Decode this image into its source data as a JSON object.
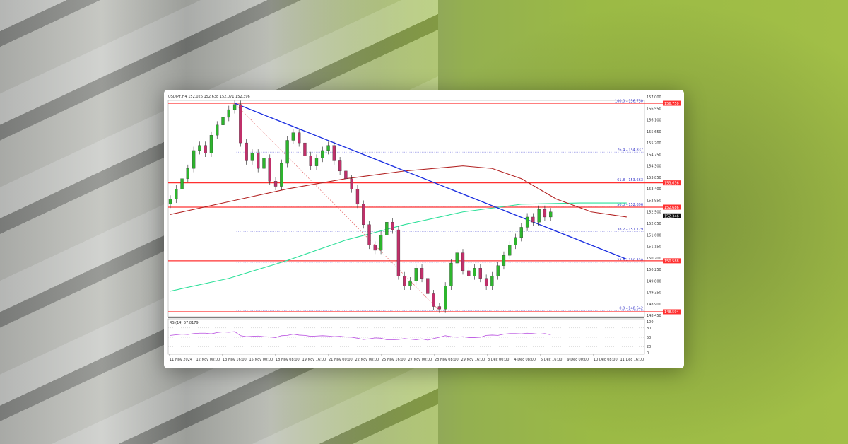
{
  "chart_data": {
    "type": "candlestick",
    "title": "USDJPY,H4 152.026 152.638 152.071 152.396",
    "ylim": [
      148.4,
      157.0
    ],
    "y_ticks": [
      "157.000",
      "156.550",
      "156.100",
      "155.650",
      "155.200",
      "154.750",
      "154.300",
      "153.850",
      "153.400",
      "152.950",
      "152.500",
      "152.050",
      "151.600",
      "151.150",
      "150.700",
      "150.250",
      "149.800",
      "149.350",
      "148.900",
      "148.450"
    ],
    "x_ticks": [
      "11 Nov 2024",
      "12 Nov 08:00",
      "13 Nov 16:00",
      "15 Nov 00:00",
      "18 Nov 08:00",
      "19 Nov 16:00",
      "21 Nov 00:00",
      "22 Nov 08:00",
      "25 Nov 16:00",
      "27 Nov 00:00",
      "28 Nov 08:00",
      "29 Nov 16:00",
      "3 Dec 00:00",
      "4 Dec 08:00",
      "5 Dec 16:00",
      "9 Dec 00:00",
      "10 Dec 08:00",
      "11 Dec 16:00"
    ],
    "closes": [
      153.0,
      153.4,
      153.8,
      154.2,
      154.9,
      155.1,
      154.8,
      155.5,
      155.9,
      156.2,
      156.5,
      156.7,
      155.2,
      154.5,
      154.8,
      154.2,
      154.6,
      153.7,
      153.5,
      154.4,
      155.3,
      155.6,
      155.2,
      154.7,
      154.3,
      154.6,
      154.9,
      155.1,
      154.5,
      154.1,
      153.8,
      153.4,
      152.8,
      152.0,
      151.2,
      151.0,
      151.6,
      152.1,
      151.8,
      150.0,
      149.6,
      149.8,
      150.3,
      149.9,
      149.3,
      148.8,
      148.7,
      149.6,
      150.5,
      150.9,
      150.2,
      150.0,
      150.3,
      149.9,
      149.6,
      150.0,
      150.4,
      150.8,
      151.2,
      151.5,
      151.9,
      152.3,
      152.1,
      152.6,
      152.3,
      152.5
    ],
    "ma_red": [
      [
        0,
        152.4
      ],
      [
        10,
        152.9
      ],
      [
        20,
        153.4
      ],
      [
        30,
        153.8
      ],
      [
        40,
        154.1
      ],
      [
        50,
        154.3
      ],
      [
        55,
        154.2
      ],
      [
        60,
        153.8
      ],
      [
        66,
        153.0
      ],
      [
        72,
        152.5
      ],
      [
        78,
        152.3
      ]
    ],
    "ma_green": [
      [
        0,
        149.4
      ],
      [
        10,
        149.9
      ],
      [
        20,
        150.6
      ],
      [
        30,
        151.4
      ],
      [
        40,
        152.0
      ],
      [
        50,
        152.5
      ],
      [
        60,
        152.8
      ],
      [
        70,
        152.85
      ],
      [
        78,
        152.85
      ]
    ],
    "trendline": {
      "from": [
        11,
        156.75
      ],
      "to": [
        78,
        150.65
      ]
    },
    "fibonacci": [
      {
        "label": "100.0 - 156.750",
        "price": 156.75
      },
      {
        "label": "76.4 - 154.837",
        "price": 154.837
      },
      {
        "label": "61.8 - 153.663",
        "price": 153.663
      },
      {
        "label": "50.0 - 152.696",
        "price": 152.696
      },
      {
        "label": "38.2 - 151.729",
        "price": 151.729
      },
      {
        "label": "23.6 - 150.530",
        "price": 150.53
      },
      {
        "label": "0.0 - 148.642",
        "price": 148.642
      }
    ],
    "horizontal_levels": [
      {
        "price": 156.75,
        "label": "156.750"
      },
      {
        "price": 153.636,
        "label": "153.636"
      },
      {
        "price": 152.686,
        "label": "152.686"
      },
      {
        "price": 150.588,
        "label": "150.588"
      },
      {
        "price": 148.594,
        "label": "148.594"
      }
    ],
    "current_price": "152.346",
    "rsi": {
      "title": "RSI(14) 57.8179",
      "ylim": [
        0,
        100
      ],
      "y_ticks": [
        "100",
        "80",
        "50",
        "20",
        "0"
      ],
      "values": [
        56,
        58,
        60,
        59,
        62,
        63,
        63,
        61,
        65,
        67,
        66,
        68,
        55,
        52,
        53,
        54,
        52,
        51,
        49,
        55,
        56,
        60,
        57,
        56,
        53,
        54,
        55,
        54,
        52,
        53,
        51,
        50,
        47,
        43,
        45,
        48,
        47,
        42,
        42,
        43,
        46,
        44,
        42,
        45,
        41,
        46,
        50,
        55,
        52,
        50,
        52,
        49,
        49,
        50,
        56,
        57,
        56,
        60,
        62,
        62,
        61,
        63,
        62,
        60,
        62,
        58
      ]
    },
    "colors": {
      "up": "#2db52d",
      "down": "#c0306a",
      "ma_red": "#b22222",
      "ma_green": "#2ee09a",
      "trend": "#1a2ee0",
      "level": "#ff3030",
      "rsi": "#b84ee0",
      "background_green": "#9bba45"
    }
  }
}
